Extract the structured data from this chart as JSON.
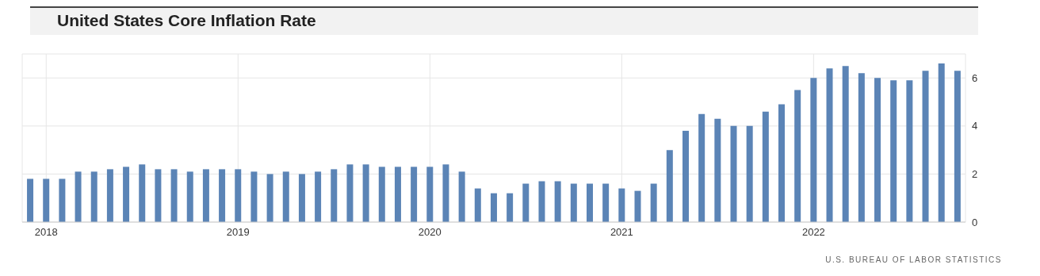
{
  "chart_data": {
    "type": "bar",
    "title": "United States Core Inflation Rate",
    "categories": [
      null,
      "2018",
      null,
      null,
      null,
      null,
      null,
      null,
      null,
      null,
      null,
      null,
      null,
      "2019",
      null,
      null,
      null,
      null,
      null,
      null,
      null,
      null,
      null,
      null,
      null,
      "2020",
      null,
      null,
      null,
      null,
      null,
      null,
      null,
      null,
      null,
      null,
      null,
      "2021",
      null,
      null,
      null,
      null,
      null,
      null,
      null,
      null,
      null,
      null,
      null,
      "2022",
      null,
      null,
      null,
      null,
      null,
      null,
      null,
      null,
      null
    ],
    "values": [
      1.8,
      1.8,
      1.8,
      2.1,
      2.1,
      2.2,
      2.3,
      2.4,
      2.2,
      2.2,
      2.1,
      2.2,
      2.2,
      2.2,
      2.1,
      2.0,
      2.1,
      2.0,
      2.1,
      2.2,
      2.4,
      2.4,
      2.3,
      2.3,
      2.3,
      2.3,
      2.4,
      2.1,
      1.4,
      1.2,
      1.2,
      1.6,
      1.7,
      1.7,
      1.6,
      1.6,
      1.6,
      1.4,
      1.3,
      1.6,
      3.0,
      3.8,
      4.5,
      4.3,
      4.0,
      4.0,
      4.6,
      4.9,
      5.5,
      6.0,
      6.4,
      6.5,
      6.2,
      6.0,
      5.9,
      5.9,
      6.3,
      6.6,
      6.3
    ],
    "color": "#5b84b6",
    "ylim": [
      0,
      7
    ],
    "yticks": [
      0,
      2,
      4,
      6
    ],
    "grid": true,
    "annotations": [
      "U.S. BUREAU OF LABOR STATISTICS"
    ]
  }
}
